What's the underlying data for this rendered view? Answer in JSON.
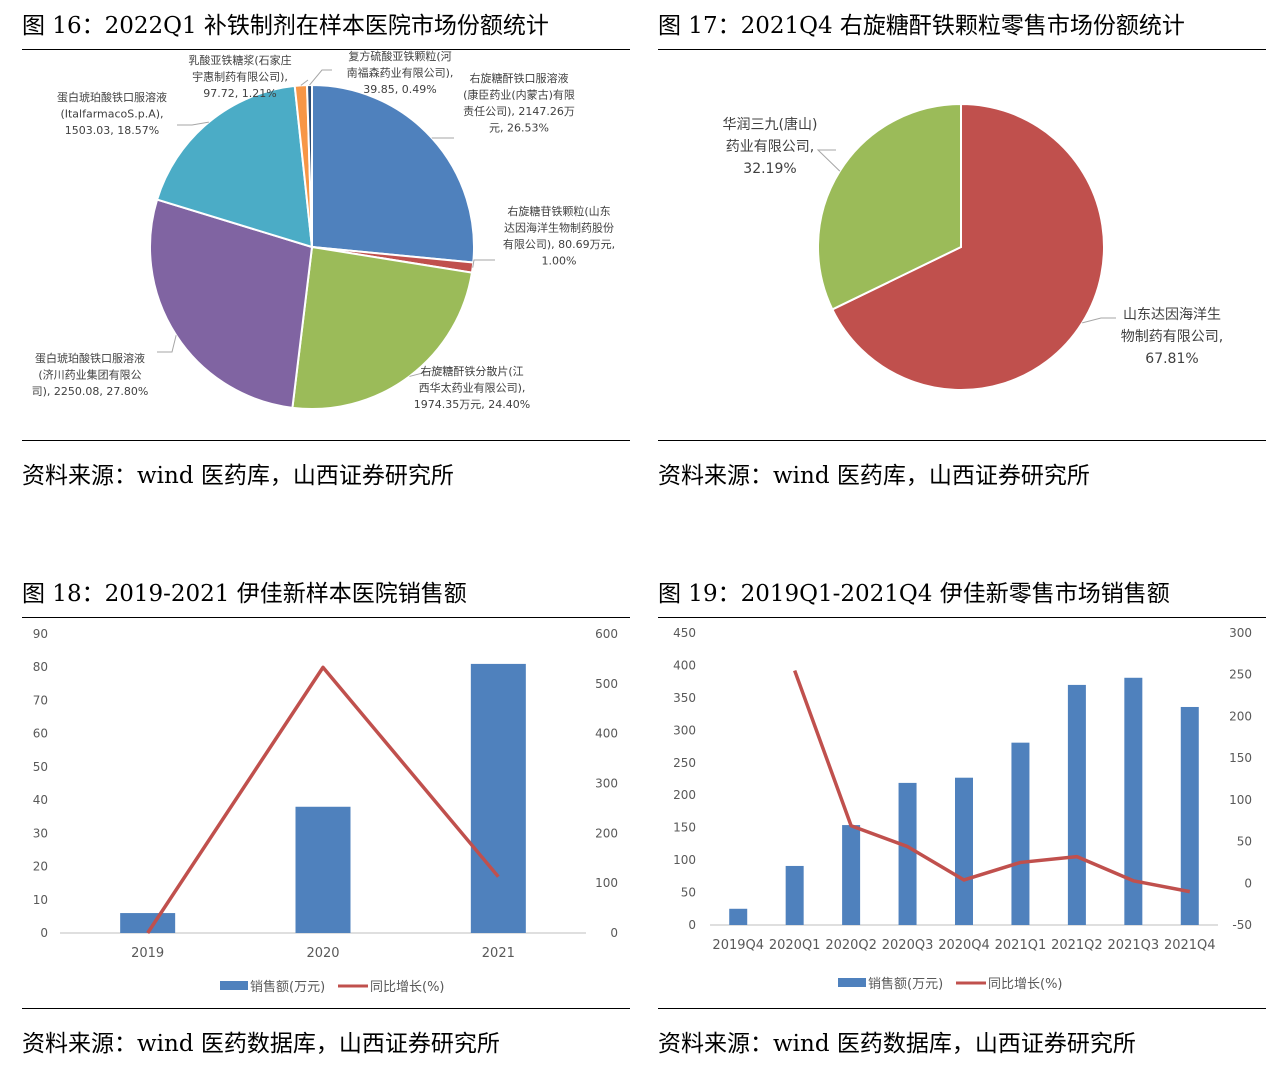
{
  "panels": [
    {
      "figure_title": "图 16：2022Q1 补铁制剂在样本医院市场份额统计",
      "source": "资料来源：wind 医药库，山西证券研究所"
    },
    {
      "figure_title": "图 17：2021Q4 右旋糖酐铁颗粒零售市场份额统计",
      "source": "资料来源：wind 医药库，山西证券研究所"
    },
    {
      "figure_title": "图 18：2019-2021 伊佳新样本医院销售额",
      "source": "资料来源：wind 医药数据库，山西证券研究所"
    },
    {
      "figure_title": "图 19：2019Q1-2021Q4 伊佳新零售市场销售额",
      "source": "资料来源：wind 医药数据库，山西证券研究所"
    }
  ],
  "chart_data": [
    {
      "type": "pie",
      "slices": [
        {
          "label_lines": [
            "右旋糖酐铁口服溶液",
            "(康臣药业(内蒙古)有限",
            "责任公司), 2147.26万",
            "元, 26.53%"
          ],
          "value": 26.53,
          "color": "#4F81BD"
        },
        {
          "label_lines": [
            "右旋糖苷铁颗粒(山东",
            "达因海洋生物制药股份",
            "有限公司), 80.69万元,",
            "1.00%"
          ],
          "value": 1.0,
          "color": "#C0504D"
        },
        {
          "label_lines": [
            "右旋糖酐铁分散片(江",
            "西华太药业有限公司),",
            "1974.35万元, 24.40%"
          ],
          "value": 24.4,
          "color": "#9BBB59"
        },
        {
          "label_lines": [
            "蛋白琥珀酸铁口服溶液",
            "(济川药业集团有限公",
            "司), 2250.08, 27.80%"
          ],
          "value": 27.8,
          "color": "#8064A2"
        },
        {
          "label_lines": [
            "蛋白琥珀酸铁口服溶液",
            "(ItalfarmacoS.p.A),",
            "1503.03, 18.57%"
          ],
          "value": 18.57,
          "color": "#4BACC6"
        },
        {
          "label_lines": [
            "乳酸亚铁糖浆(石家庄",
            "宇惠制药有限公司),",
            "97.72, 1.21%"
          ],
          "value": 1.21,
          "color": "#F79646"
        },
        {
          "label_lines": [
            "复方硫酸亚铁颗粒(河",
            "南福森药业有限公司),",
            "39.85, 0.49%"
          ],
          "value": 0.49,
          "color": "#2C4D75"
        }
      ]
    },
    {
      "type": "pie",
      "slices": [
        {
          "label_lines": [
            "山东达因海洋生",
            "物制药有限公司,",
            "67.81%"
          ],
          "value": 67.81,
          "color": "#C0504D"
        },
        {
          "label_lines": [
            "华润三九(唐山)",
            "药业有限公司,",
            "32.19%"
          ],
          "value": 32.19,
          "color": "#9BBB59"
        }
      ]
    },
    {
      "type": "bar",
      "categories": [
        "2019",
        "2020",
        "2021"
      ],
      "series": [
        {
          "name": "销售额(万元)",
          "kind": "bar",
          "axis": "left",
          "values": [
            6,
            38,
            81
          ],
          "color": "#4F81BD"
        },
        {
          "name": "同比增长(%)",
          "kind": "line",
          "axis": "right",
          "values": [
            0,
            533,
            113
          ],
          "color": "#C0504D"
        }
      ],
      "ylim_left": [
        0,
        90
      ],
      "yticks_left": [
        0,
        10,
        20,
        30,
        40,
        50,
        60,
        70,
        80,
        90
      ],
      "ylim_right": [
        0,
        600
      ],
      "yticks_right": [
        0,
        100,
        200,
        300,
        400,
        500,
        600
      ],
      "legend": "bottom",
      "grid": false
    },
    {
      "type": "bar",
      "categories": [
        "2019Q4",
        "2020Q1",
        "2020Q2",
        "2020Q3",
        "2020Q4",
        "2021Q1",
        "2021Q2",
        "2021Q3",
        "2021Q4"
      ],
      "series": [
        {
          "name": "销售额(万元)",
          "kind": "bar",
          "axis": "left",
          "values": [
            25,
            91,
            154,
            219,
            227,
            281,
            370,
            381,
            336
          ],
          "color": "#4F81BD"
        },
        {
          "name": "同比增长(%)",
          "kind": "line",
          "axis": "right",
          "values": [
            null,
            255,
            69,
            44,
            4,
            25,
            32,
            3,
            -10
          ],
          "color": "#C0504D"
        }
      ],
      "ylim_left": [
        0,
        450
      ],
      "yticks_left": [
        0,
        50,
        100,
        150,
        200,
        250,
        300,
        350,
        400,
        450
      ],
      "ylim_right": [
        -50,
        300
      ],
      "yticks_right": [
        -50,
        0,
        50,
        100,
        150,
        200,
        250,
        300
      ],
      "legend": "bottom",
      "grid": false
    }
  ]
}
